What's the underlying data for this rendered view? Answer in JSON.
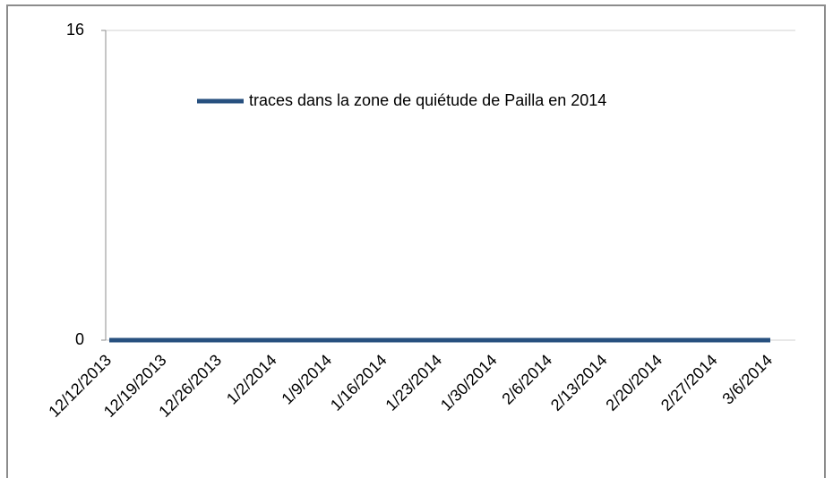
{
  "chart_data": {
    "type": "line",
    "x": [
      "12/12/2013",
      "12/19/2013",
      "12/26/2013",
      "1/2/2014",
      "1/9/2014",
      "1/16/2014",
      "1/23/2014",
      "1/30/2014",
      "2/6/2014",
      "2/13/2014",
      "2/20/2014",
      "2/27/2014",
      "3/6/2014"
    ],
    "series": [
      {
        "name": "traces dans la zone de quiétude de Pailla en 2014",
        "color": "#27507f",
        "values": [
          0,
          0,
          0,
          0,
          0,
          0,
          0,
          0,
          0,
          0,
          0,
          0,
          0
        ]
      }
    ],
    "ylim": [
      0,
      16
    ],
    "yticks": [
      0,
      16
    ],
    "grid": true,
    "legend": "top"
  }
}
